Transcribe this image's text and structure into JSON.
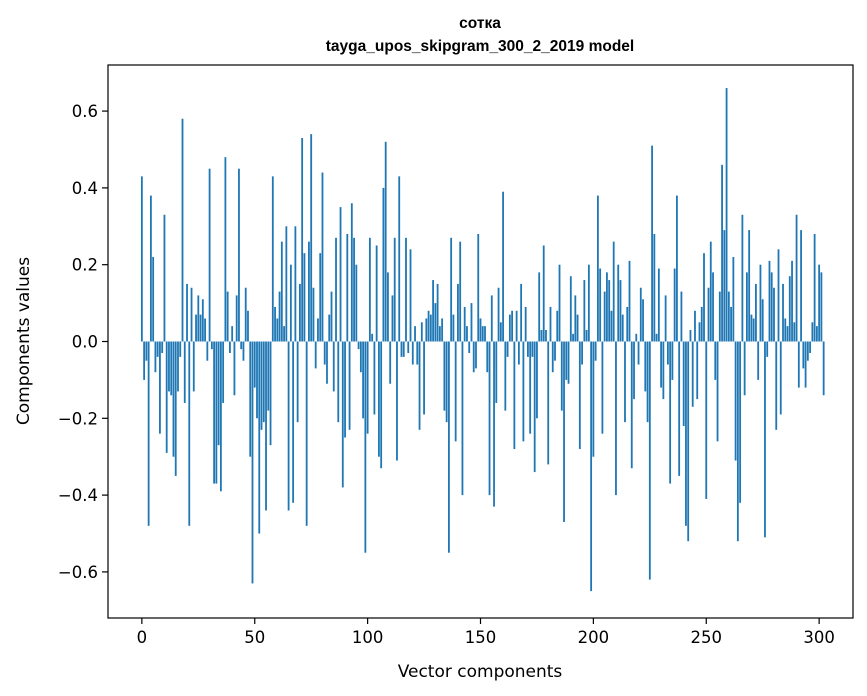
{
  "chart_data": {
    "type": "bar",
    "title": "сотка",
    "subtitle": "tayga_upos_skipgram_300_2_2019 model",
    "xlabel": "Vector components",
    "ylabel": "Components values",
    "xlim": [
      -15,
      315
    ],
    "ylim": [
      -0.72,
      0.72
    ],
    "xticks": [
      0,
      50,
      100,
      150,
      200,
      250,
      300
    ],
    "yticks": [
      -0.6,
      -0.4,
      -0.2,
      0.0,
      0.2,
      0.4,
      0.6
    ],
    "xtick_labels": [
      "0",
      "50",
      "100",
      "150",
      "200",
      "250",
      "300"
    ],
    "ytick_labels": [
      "−0.6",
      "−0.4",
      "−0.2",
      "0.0",
      "0.2",
      "0.4",
      "0.6"
    ],
    "bar_color": "#1f77b4",
    "values": [
      0.43,
      -0.1,
      -0.05,
      -0.48,
      0.38,
      0.22,
      -0.08,
      -0.04,
      -0.24,
      -0.03,
      0.33,
      -0.29,
      -0.13,
      -0.14,
      -0.3,
      -0.35,
      -0.13,
      -0.04,
      0.58,
      -0.16,
      0.15,
      -0.48,
      0.14,
      -0.13,
      0.07,
      0.12,
      0.07,
      0.11,
      0.06,
      -0.05,
      0.45,
      -0.02,
      -0.37,
      -0.37,
      -0.27,
      -0.39,
      -0.16,
      0.48,
      0.13,
      -0.03,
      0.04,
      -0.14,
      0.12,
      0.45,
      -0.02,
      -0.05,
      0.14,
      0.08,
      -0.3,
      -0.63,
      -0.12,
      -0.2,
      -0.5,
      -0.23,
      -0.21,
      -0.44,
      -0.18,
      -0.27,
      0.43,
      0.09,
      0.06,
      0.13,
      0.26,
      0.04,
      0.3,
      -0.44,
      0.2,
      -0.42,
      0.3,
      -0.21,
      0.15,
      0.53,
      0.23,
      -0.48,
      0.26,
      0.54,
      0.14,
      -0.07,
      0.06,
      0.23,
      0.44,
      -0.06,
      -0.11,
      0.07,
      0.13,
      -0.13,
      0.27,
      -0.21,
      0.35,
      -0.38,
      -0.25,
      0.28,
      -0.23,
      0.36,
      0.27,
      0.2,
      -0.02,
      -0.08,
      -0.2,
      -0.55,
      -0.24,
      0.27,
      0.02,
      -0.19,
      0.25,
      -0.3,
      -0.33,
      0.4,
      0.52,
      0.18,
      -0.11,
      0.12,
      0.27,
      -0.31,
      0.43,
      -0.04,
      -0.04,
      0.27,
      -0.03,
      0.24,
      -0.06,
      0.04,
      -0.06,
      -0.23,
      0.05,
      -0.19,
      0.06,
      0.08,
      0.07,
      0.16,
      0.1,
      0.15,
      0.04,
      0.06,
      -0.18,
      -0.21,
      -0.55,
      0.27,
      0.07,
      -0.26,
      0.15,
      0.26,
      -0.4,
      0.09,
      0.04,
      -0.03,
      0.1,
      -0.08,
      -0.07,
      0.28,
      0.06,
      0.04,
      0.04,
      -0.08,
      -0.4,
      0.12,
      -0.43,
      -0.16,
      0.14,
      0.05,
      0.39,
      -0.18,
      -0.04,
      0.07,
      0.08,
      -0.28,
      0.08,
      -0.06,
      0.15,
      -0.26,
      0.09,
      -0.04,
      -0.24,
      -0.04,
      -0.34,
      -0.2,
      0.18,
      0.03,
      0.25,
      0.03,
      -0.32,
      0.09,
      -0.08,
      -0.05,
      0.08,
      0.2,
      -0.18,
      -0.47,
      -0.1,
      -0.11,
      0.17,
      0.02,
      0.12,
      0.07,
      -0.28,
      -0.06,
      0.16,
      0.03,
      0.2,
      -0.65,
      -0.3,
      -0.05,
      0.38,
      0.19,
      -0.24,
      0.13,
      0.18,
      0.16,
      0.08,
      0.26,
      -0.4,
      0.2,
      0.16,
      0.07,
      -0.21,
      0.09,
      0.21,
      -0.33,
      -0.15,
      0.02,
      -0.06,
      0.14,
      0.11,
      -0.13,
      -0.21,
      -0.62,
      0.51,
      0.28,
      0.02,
      0.19,
      -0.12,
      -0.15,
      0.12,
      -0.06,
      -0.37,
      -0.1,
      0.19,
      0.38,
      -0.35,
      0.13,
      -0.22,
      -0.48,
      -0.52,
      0.03,
      -0.17,
      0.08,
      -0.15,
      0.05,
      0.09,
      0.23,
      -0.41,
      0.14,
      0.26,
      0.18,
      -0.1,
      -0.26,
      0.13,
      0.46,
      0.29,
      0.66,
      0.13,
      0.09,
      0.22,
      -0.31,
      -0.52,
      -0.42,
      0.33,
      -0.14,
      0.18,
      0.29,
      0.07,
      0.06,
      0.15,
      -0.1,
      0.2,
      0.11,
      -0.51,
      -0.04,
      0.21,
      0.18,
      0.14,
      -0.23,
      0.24,
      -0.19,
      0.15,
      0.06,
      0.04,
      0.17,
      0.21,
      0.05,
      0.33,
      -0.12,
      0.29,
      -0.07,
      -0.12,
      -0.05,
      -0.03,
      0.05,
      0.28,
      0.04,
      0.2,
      0.18,
      -0.14
    ]
  }
}
